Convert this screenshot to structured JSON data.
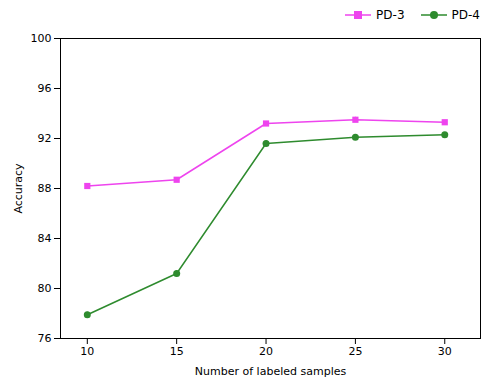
{
  "chart_data": {
    "type": "line",
    "xlabel": "Number of labeled samples",
    "ylabel": "Accuracy",
    "x": [
      10,
      15,
      20,
      25,
      30
    ],
    "series": [
      {
        "name": "PD-3",
        "color": "#EE44EE",
        "marker": "square",
        "values": [
          88.2,
          88.7,
          93.2,
          93.5,
          93.3
        ],
        "yerr": [
          0.15,
          0.15,
          0.15,
          0.2,
          0.15
        ]
      },
      {
        "name": "PD-4",
        "color": "#2E8B2E",
        "marker": "circle",
        "values": [
          77.9,
          81.2,
          91.6,
          92.1,
          92.3
        ],
        "yerr": [
          0.2,
          0.2,
          0.2,
          0.15,
          0.15
        ]
      }
    ],
    "xlim": [
      8.5,
      32
    ],
    "xticks": [
      10,
      15,
      20,
      25,
      30
    ],
    "ylim": [
      76,
      100
    ],
    "yticks": [
      76,
      80,
      84,
      88,
      92,
      96,
      100
    ],
    "grid": false,
    "legend": "upper right"
  }
}
